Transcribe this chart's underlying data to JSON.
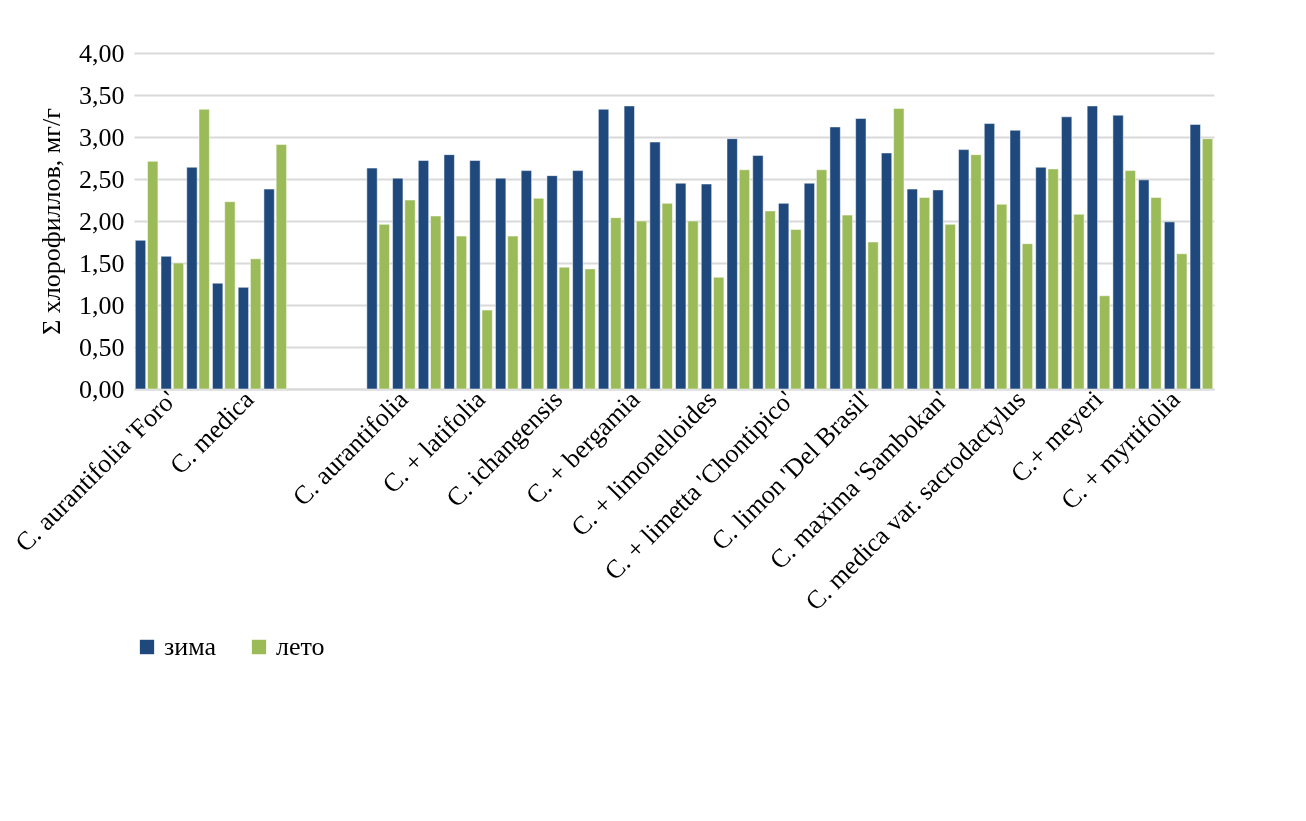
{
  "chart_data": {
    "type": "bar",
    "ylabel": "Σ хлорофиллов, мг/г",
    "categories": [
      null,
      "C. aurantifolia 'Foro'",
      null,
      null,
      "C. medica",
      null,
      null,
      null,
      null,
      null,
      "C. aurantifolia",
      null,
      null,
      "C. + latifolia",
      null,
      null,
      "C. ichangensis",
      null,
      null,
      "C. + bergamia",
      null,
      null,
      "C. + limonelloides",
      null,
      null,
      "C. + limetta 'Chontipico'",
      null,
      null,
      "C. limon 'Del Brasil'",
      null,
      null,
      "C. maxima 'Sambokan'",
      null,
      null,
      "C. medica var. sacrodactylus",
      null,
      null,
      "C.+ meyeri",
      null,
      null,
      "C. + myrtifolia",
      null
    ],
    "series": [
      {
        "name": "зима",
        "color": "#1f497d",
        "values": [
          1.77,
          1.58,
          2.64,
          1.26,
          1.21,
          2.38,
          null,
          null,
          null,
          2.63,
          2.51,
          2.72,
          2.79,
          2.72,
          2.51,
          2.6,
          2.54,
          2.6,
          3.33,
          3.37,
          2.94,
          2.45,
          2.44,
          2.98,
          2.78,
          2.21,
          2.45,
          3.12,
          3.22,
          2.81,
          2.38,
          2.37,
          2.85,
          3.16,
          3.08,
          2.64,
          3.24,
          3.37,
          3.26,
          2.49,
          1.99,
          3.15
        ]
      },
      {
        "name": "лето",
        "color": "#9bbb59",
        "values": [
          2.71,
          1.5,
          3.33,
          2.23,
          1.55,
          2.91,
          null,
          null,
          null,
          1.96,
          2.25,
          2.06,
          1.82,
          0.94,
          1.82,
          2.27,
          1.45,
          1.43,
          2.04,
          2.0,
          2.21,
          2.0,
          1.33,
          2.61,
          2.12,
          1.9,
          2.61,
          2.07,
          1.75,
          3.34,
          2.28,
          1.96,
          2.79,
          2.2,
          1.73,
          2.62,
          2.08,
          1.11,
          2.6,
          2.28,
          1.61,
          2.98
        ]
      }
    ],
    "ylim": [
      0,
      4
    ],
    "yticks": [
      {
        "value": 0,
        "label": "0,00"
      },
      {
        "value": 0.5,
        "label": "0,50"
      },
      {
        "value": 1,
        "label": "1,00"
      },
      {
        "value": 1.5,
        "label": "1,50"
      },
      {
        "value": 2,
        "label": "2,00"
      },
      {
        "value": 2.5,
        "label": "2,50"
      },
      {
        "value": 3,
        "label": "3,00"
      },
      {
        "value": 3.5,
        "label": "3,50"
      },
      {
        "value": 4,
        "label": "4,00"
      }
    ],
    "grid": "y",
    "legend": "bottom"
  }
}
